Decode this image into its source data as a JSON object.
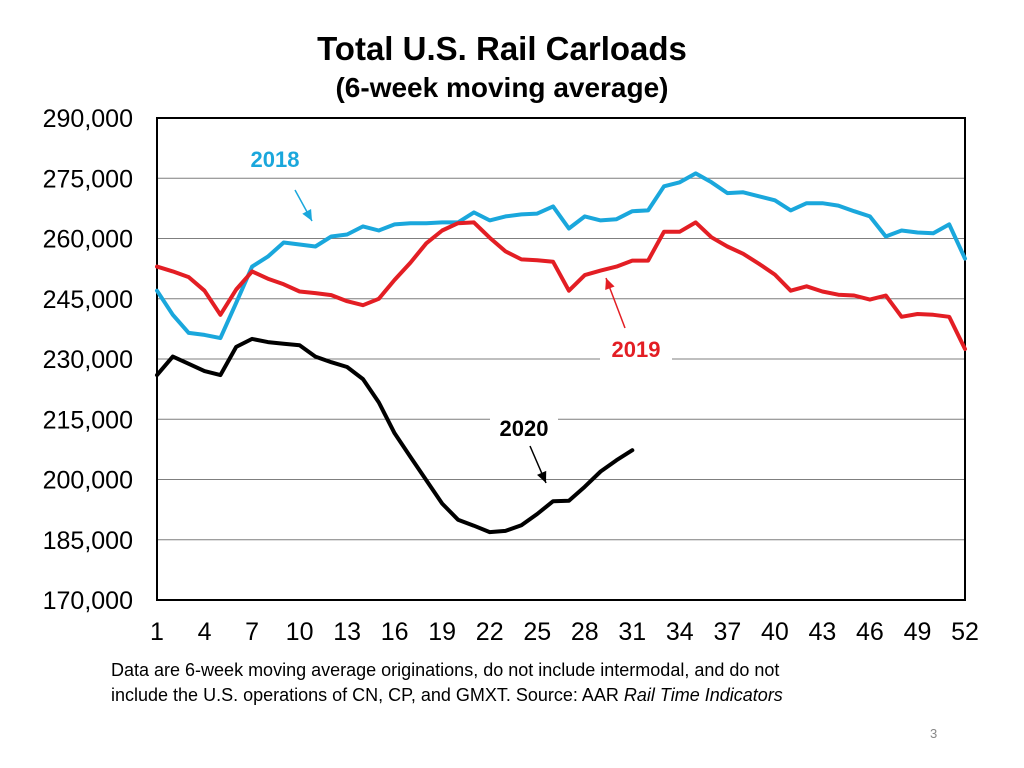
{
  "chart_data": {
    "type": "line",
    "title": "Total U.S. Rail Carloads",
    "subtitle": "(6-week moving average)",
    "xlabel": "",
    "ylabel": "",
    "xlim": [
      1,
      52
    ],
    "ylim": [
      170000,
      290000
    ],
    "x_ticks": [
      1,
      4,
      7,
      10,
      13,
      16,
      19,
      22,
      25,
      28,
      31,
      34,
      37,
      40,
      43,
      46,
      49,
      52
    ],
    "y_ticks": [
      "170,000",
      "185,000",
      "200,000",
      "215,000",
      "230,000",
      "245,000",
      "260,000",
      "275,000",
      "290,000"
    ],
    "series": [
      {
        "name": "2018",
        "color": "#1AA7DC",
        "values": [
          247000,
          241000,
          236500,
          236000,
          235200,
          244000,
          253000,
          255500,
          259000,
          258500,
          258000,
          260500,
          261000,
          263000,
          262000,
          263500,
          263800,
          263800,
          264000,
          264000,
          266500,
          264500,
          265500,
          266000,
          266200,
          268000,
          262500,
          265500,
          264500,
          264800,
          266800,
          267000,
          273000,
          274000,
          276200,
          274000,
          271300,
          271500,
          270500,
          269500,
          267000,
          268800,
          268800,
          268200,
          266800,
          265500,
          260500,
          262000,
          261500,
          261300,
          263500,
          255000
        ]
      },
      {
        "name": "2019",
        "color": "#E31E24",
        "values": [
          253000,
          251800,
          250400,
          247000,
          241000,
          247300,
          251800,
          250000,
          248600,
          246800,
          246400,
          245900,
          244400,
          243400,
          245000,
          249700,
          254000,
          258800,
          262000,
          263800,
          264000,
          260200,
          256800,
          254800,
          254600,
          254200,
          247000,
          250900,
          252000,
          253000,
          254500,
          254500,
          261700,
          261700,
          264000,
          260300,
          258000,
          256200,
          253700,
          251000,
          247000,
          248100,
          246800,
          246000,
          245800,
          244800,
          245800,
          240500,
          241200,
          241000,
          240500,
          232500
        ]
      },
      {
        "name": "2020",
        "color": "#000000",
        "values": [
          226000,
          230600,
          228800,
          227000,
          226000,
          233000,
          235000,
          234200,
          233800,
          233400,
          230600,
          229200,
          228000,
          225000,
          219200,
          211500,
          205600,
          199800,
          194000,
          190000,
          188500,
          186900,
          187200,
          188600,
          191400,
          194600,
          194700,
          198200,
          202000,
          204800,
          207300
        ]
      }
    ],
    "annotations": [
      "2018",
      "2019",
      "2020"
    ],
    "footnote_line1": "Data are 6-week moving average originations, do not include intermodal, and do not",
    "footnote_line2": "include the U.S. operations of CN, CP, and GMXT.   Source: AAR ",
    "footnote_italic": "Rail Time Indicators",
    "page_number": "3"
  }
}
